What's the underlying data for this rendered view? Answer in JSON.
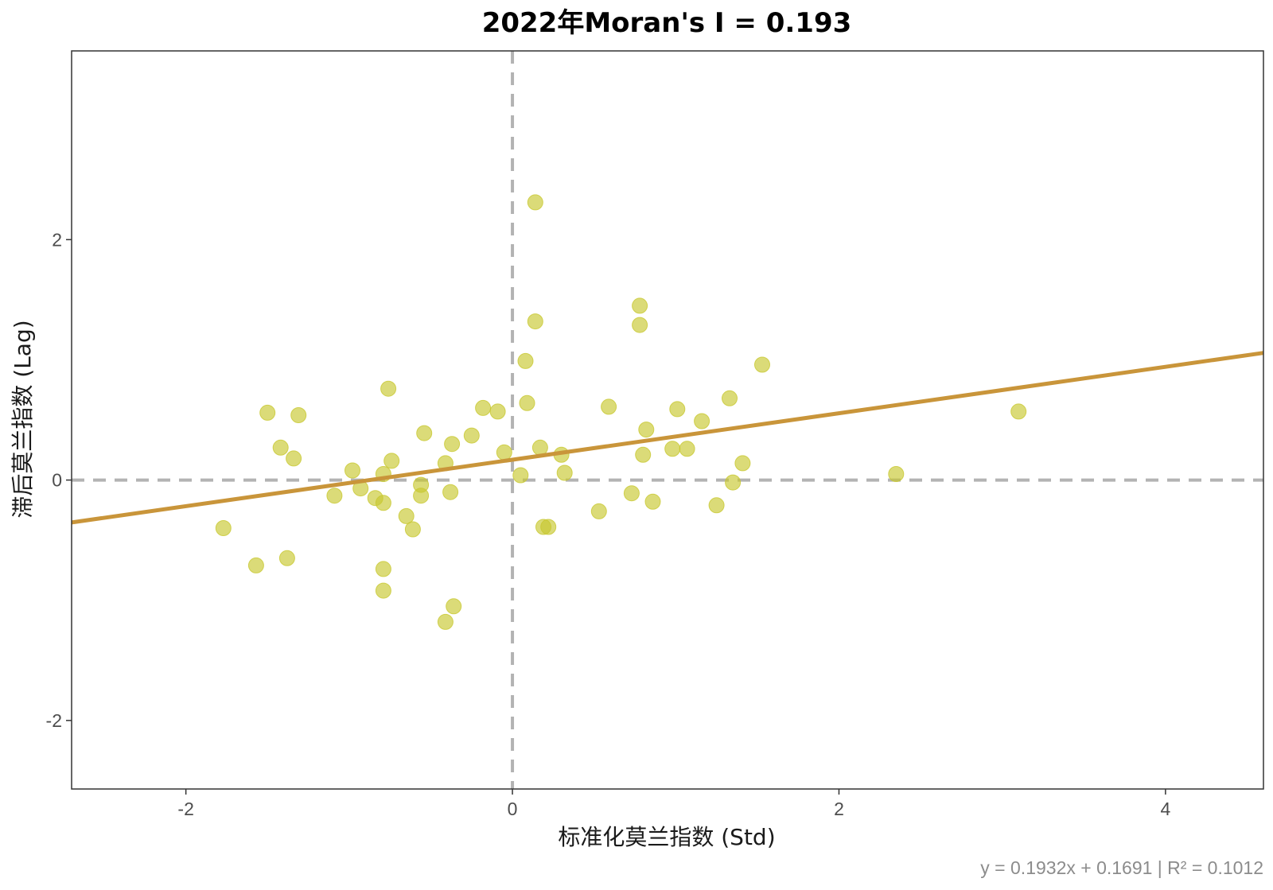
{
  "chart_data": {
    "type": "scatter",
    "title": "2022年Moran's I = 0.193",
    "xlabel": "标准化莫兰指数 (Std)",
    "ylabel": "滞后莫兰指数 (Lag)",
    "caption": "y = 0.1932x + 0.1691 | R² = 0.1012",
    "xlim": [
      -2.7,
      4.6
    ],
    "ylim": [
      -2.57,
      3.57
    ],
    "x_ticks": [
      -2,
      0,
      2,
      4
    ],
    "y_ticks": [
      -2,
      0,
      2
    ],
    "grid": false,
    "reference_lines": {
      "x": 0,
      "y": 0,
      "style": "dashed"
    },
    "regression": {
      "slope": 0.1932,
      "intercept": 0.1691
    },
    "colors": {
      "points": "#c8c830",
      "line": "#c9953a",
      "reference": "#b3b3b3",
      "frame": "#333333"
    },
    "points": [
      [
        0.14,
        2.31
      ],
      [
        0.78,
        1.45
      ],
      [
        0.78,
        1.29
      ],
      [
        0.14,
        1.32
      ],
      [
        0.08,
        0.99
      ],
      [
        1.53,
        0.96
      ],
      [
        -0.76,
        0.76
      ],
      [
        0.09,
        0.64
      ],
      [
        1.33,
        0.68
      ],
      [
        0.59,
        0.61
      ],
      [
        1.01,
        0.59
      ],
      [
        1.16,
        0.49
      ],
      [
        -1.5,
        0.56
      ],
      [
        -1.31,
        0.54
      ],
      [
        -0.18,
        0.6
      ],
      [
        -0.09,
        0.57
      ],
      [
        3.1,
        0.57
      ],
      [
        0.82,
        0.42
      ],
      [
        -0.54,
        0.39
      ],
      [
        -0.25,
        0.37
      ],
      [
        -0.37,
        0.3
      ],
      [
        -1.42,
        0.27
      ],
      [
        0.17,
        0.27
      ],
      [
        0.98,
        0.26
      ],
      [
        1.07,
        0.26
      ],
      [
        -0.05,
        0.23
      ],
      [
        0.3,
        0.21
      ],
      [
        0.8,
        0.21
      ],
      [
        -1.34,
        0.18
      ],
      [
        -0.74,
        0.16
      ],
      [
        -0.41,
        0.14
      ],
      [
        1.41,
        0.14
      ],
      [
        -0.98,
        0.08
      ],
      [
        -0.79,
        0.05
      ],
      [
        0.32,
        0.06
      ],
      [
        0.05,
        0.04
      ],
      [
        2.35,
        0.05
      ],
      [
        1.35,
        -0.02
      ],
      [
        -0.56,
        -0.04
      ],
      [
        -0.93,
        -0.07
      ],
      [
        -1.09,
        -0.13
      ],
      [
        -0.56,
        -0.13
      ],
      [
        -0.84,
        -0.15
      ],
      [
        -0.38,
        -0.1
      ],
      [
        0.73,
        -0.11
      ],
      [
        -0.79,
        -0.19
      ],
      [
        0.86,
        -0.18
      ],
      [
        1.25,
        -0.21
      ],
      [
        0.53,
        -0.26
      ],
      [
        -0.65,
        -0.3
      ],
      [
        -0.61,
        -0.41
      ],
      [
        0.19,
        -0.39
      ],
      [
        0.22,
        -0.39
      ],
      [
        -1.77,
        -0.4
      ],
      [
        -1.57,
        -0.71
      ],
      [
        -1.38,
        -0.65
      ],
      [
        -0.79,
        -0.74
      ],
      [
        -0.79,
        -0.92
      ],
      [
        -0.36,
        -1.05
      ],
      [
        -0.41,
        -1.18
      ]
    ]
  }
}
